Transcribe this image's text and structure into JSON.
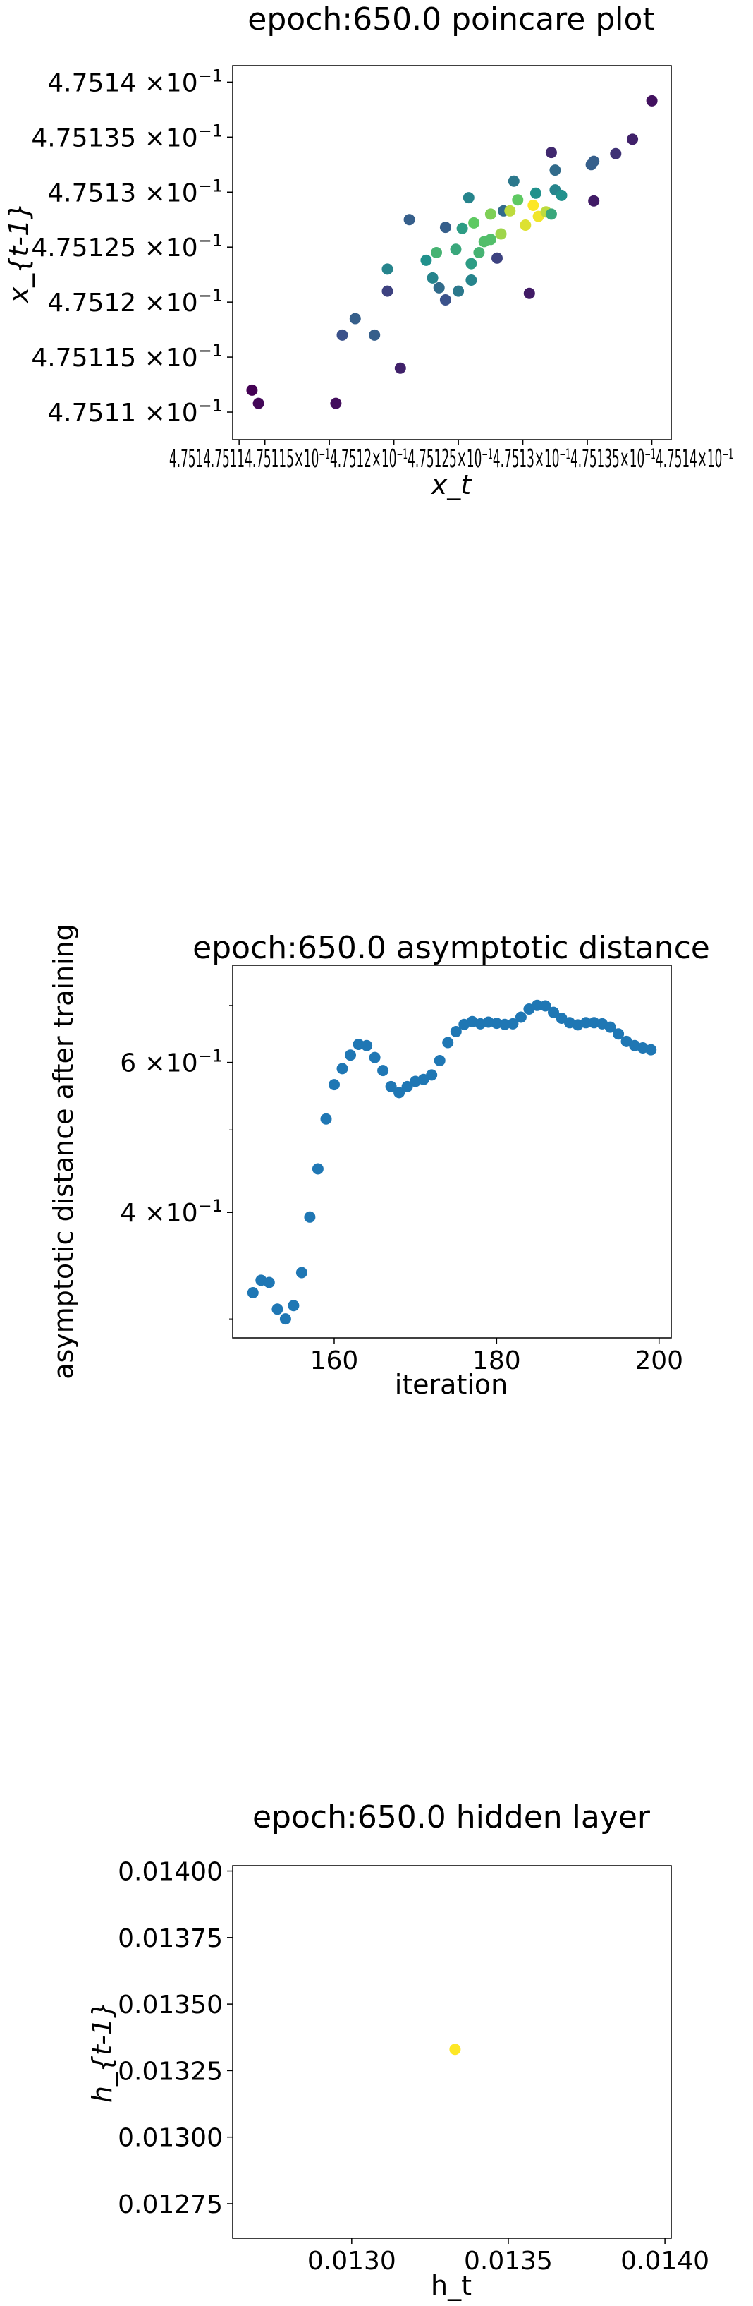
{
  "charts": [
    {
      "type": "scatter",
      "title": "epoch:650.0 poincare plot",
      "xlabel": "x_t",
      "ylabel": "x_{t-1}",
      "colormap": "viridis",
      "x_tick_labels": [
        "4.75×10⁻¹",
        "4.7511×10⁻¹",
        "4.75115×10⁻¹",
        "4.7512×10⁻¹",
        "4.75125×10⁻¹",
        "4.7513×10⁻¹",
        "4.75135×10⁻¹",
        "4.7514×10⁻¹"
      ],
      "x_ticks": [
        0.475108,
        0.47511,
        0.475115,
        0.47512,
        0.475125,
        0.47513,
        0.475135,
        0.47514
      ],
      "x_ticks_rendered_text": "4.7514.75114.75115×10⁻¹4.7512×10⁻¹4.75125×10⁻¹4.7513×10⁻¹4.75135×10⁻¹4.7514×10⁻¹",
      "y_ticks": [
        0.47511,
        0.475115,
        0.47512,
        0.475125,
        0.47513,
        0.475135,
        0.47514
      ],
      "y_tick_mantissas": [
        "4.7511",
        "4.75115",
        "4.7512",
        "4.75125",
        "4.7513",
        "4.75135",
        "4.7514"
      ],
      "y_tick_exponent": "−1",
      "x_tick_times": "×10",
      "xlim": [
        0.4751075,
        0.4751415
      ],
      "ylim": [
        0.4751075,
        0.4751415
      ],
      "points": [
        [
          0.475109,
          0.475112,
          0.0
        ],
        [
          0.4751095,
          0.4751108,
          0.02
        ],
        [
          0.4751155,
          0.4751108,
          0.04
        ],
        [
          0.4751205,
          0.475114,
          0.1
        ],
        [
          0.475128,
          0.475124,
          0.2
        ],
        [
          0.475116,
          0.475117,
          0.25
        ],
        [
          0.475117,
          0.4751185,
          0.3
        ],
        [
          0.4751185,
          0.475117,
          0.3
        ],
        [
          0.4751305,
          0.4751208,
          0.08
        ],
        [
          0.4751235,
          0.4751213,
          0.35
        ],
        [
          0.475126,
          0.475122,
          0.45
        ],
        [
          0.4751195,
          0.475123,
          0.45
        ],
        [
          0.4751285,
          0.4751283,
          0.35
        ],
        [
          0.4751355,
          0.4751292,
          0.08
        ],
        [
          0.47514,
          0.4751383,
          0.05
        ],
        [
          0.4751385,
          0.4751348,
          0.1
        ],
        [
          0.4751372,
          0.4751335,
          0.15
        ],
        [
          0.4751322,
          0.4751336,
          0.12
        ],
        [
          0.4751212,
          0.4751275,
          0.3
        ],
        [
          0.475125,
          0.475121,
          0.4
        ],
        [
          0.475126,
          0.4751235,
          0.55
        ],
        [
          0.4751266,
          0.4751245,
          0.65
        ],
        [
          0.475127,
          0.4751255,
          0.7
        ],
        [
          0.4751253,
          0.4751267,
          0.55
        ],
        [
          0.4751262,
          0.4751272,
          0.75
        ],
        [
          0.4751275,
          0.475128,
          0.8
        ],
        [
          0.4751283,
          0.4751262,
          0.85
        ],
        [
          0.475129,
          0.4751283,
          0.9
        ],
        [
          0.4751296,
          0.4751293,
          0.75
        ],
        [
          0.4751302,
          0.475127,
          0.95
        ],
        [
          0.4751308,
          0.4751288,
          1.0
        ],
        [
          0.4751312,
          0.4751278,
          0.98
        ],
        [
          0.4751318,
          0.4751282,
          0.9
        ],
        [
          0.4751322,
          0.475128,
          0.6
        ],
        [
          0.475131,
          0.4751299,
          0.5
        ],
        [
          0.4751325,
          0.4751302,
          0.45
        ],
        [
          0.475133,
          0.4751297,
          0.5
        ],
        [
          0.4751293,
          0.475131,
          0.4
        ],
        [
          0.4751325,
          0.475132,
          0.35
        ],
        [
          0.4751353,
          0.4751325,
          0.3
        ],
        [
          0.4751258,
          0.4751295,
          0.45
        ],
        [
          0.4751248,
          0.4751248,
          0.6
        ],
        [
          0.4751233,
          0.4751245,
          0.65
        ],
        [
          0.4751275,
          0.4751257,
          0.7
        ],
        [
          0.475124,
          0.4751268,
          0.3
        ],
        [
          0.4751225,
          0.4751238,
          0.5
        ],
        [
          0.475123,
          0.4751222,
          0.45
        ],
        [
          0.4751195,
          0.475121,
          0.2
        ],
        [
          0.475124,
          0.4751202,
          0.25
        ],
        [
          0.4751355,
          0.4751328,
          0.3
        ]
      ]
    },
    {
      "type": "scatter",
      "title": "epoch:650.0 asymptotic distance",
      "xlabel": "iteration",
      "ylabel": "asymptotic distance after training",
      "color": "#1f77b4",
      "yscale": "log",
      "xlim": [
        147.5,
        201.5
      ],
      "ylim": [
        0.285,
        0.78
      ],
      "x_ticks": [
        160,
        180,
        200
      ],
      "x_tick_labels": [
        "160",
        "180",
        "200"
      ],
      "y_ticks": [
        0.4,
        0.6
      ],
      "y_tick_mantissas": [
        "4",
        "6"
      ],
      "y_tick_exponent": "−1",
      "y_tick_times": "×10",
      "x": [
        150,
        151,
        152,
        153,
        154,
        155,
        156,
        157,
        158,
        159,
        160,
        161,
        162,
        163,
        164,
        165,
        166,
        167,
        168,
        169,
        170,
        171,
        172,
        173,
        174,
        175,
        176,
        177,
        178,
        179,
        180,
        181,
        182,
        183,
        184,
        185,
        186,
        187,
        188,
        189,
        190,
        191,
        192,
        193,
        194,
        195,
        196,
        197,
        198,
        199
      ],
      "y": [
        0.322,
        0.333,
        0.331,
        0.308,
        0.3,
        0.311,
        0.34,
        0.395,
        0.45,
        0.515,
        0.565,
        0.59,
        0.612,
        0.63,
        0.628,
        0.608,
        0.587,
        0.562,
        0.553,
        0.562,
        0.57,
        0.573,
        0.58,
        0.603,
        0.633,
        0.652,
        0.665,
        0.67,
        0.666,
        0.669,
        0.667,
        0.665,
        0.666,
        0.678,
        0.693,
        0.7,
        0.699,
        0.687,
        0.676,
        0.668,
        0.664,
        0.668,
        0.668,
        0.666,
        0.66,
        0.648,
        0.635,
        0.628,
        0.624,
        0.621
      ]
    },
    {
      "type": "scatter",
      "title": "epoch:650.0 hidden layer",
      "xlabel": "h_t",
      "ylabel": "h_{t-1}",
      "color": "#fde725",
      "xlim": [
        0.01262,
        0.01402
      ],
      "ylim": [
        0.01262,
        0.01402
      ],
      "x_ticks": [
        0.013,
        0.0135,
        0.014
      ],
      "x_tick_labels": [
        "0.0130",
        "0.0135",
        "0.0140"
      ],
      "y_ticks": [
        0.01275,
        0.013,
        0.01325,
        0.0135,
        0.01375,
        0.014
      ],
      "y_tick_labels": [
        "0.01275",
        "0.01300",
        "0.01325",
        "0.01350",
        "0.01375",
        "0.01400"
      ],
      "points": [
        [
          0.01333,
          0.01333
        ]
      ]
    }
  ]
}
